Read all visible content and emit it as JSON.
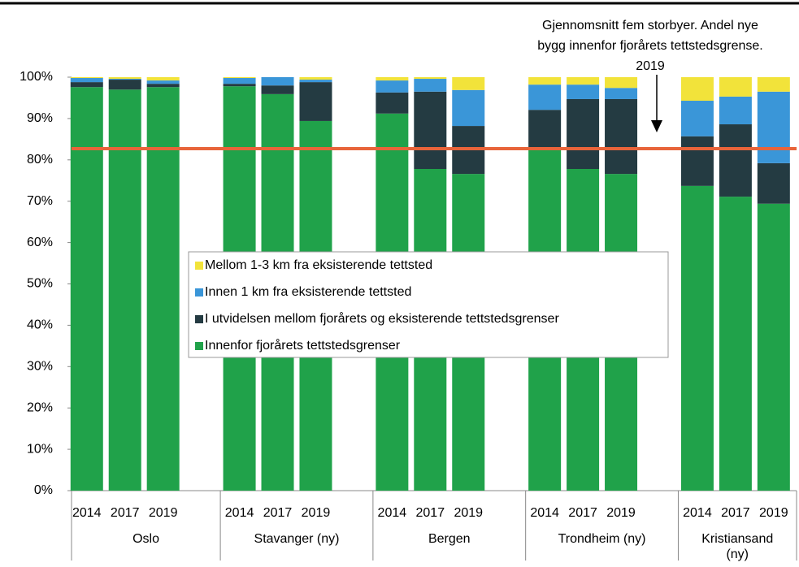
{
  "chart_data": {
    "type": "stacked_bar",
    "categories": [
      "2014",
      "2017",
      "2019",
      "2014",
      "2017",
      "2019",
      "2014",
      "2017",
      "2019",
      "2014",
      "2017",
      "2019",
      "2014",
      "2017",
      "2019"
    ],
    "groups": [
      "Oslo",
      "Stavanger (ny)",
      "Bergen",
      "Trondheim (ny)",
      "Kristiansand (ny)"
    ],
    "series": [
      {
        "name": "Innenfor fjorårets tettstedsgrenser",
        "color": "#20a24a",
        "values": [
          97.6,
          97.0,
          97.6,
          97.8,
          95.9,
          89.4,
          91.2,
          77.8,
          76.6,
          82.8,
          77.8,
          76.6,
          73.7,
          71.1,
          69.4
        ]
      },
      {
        "name": "I utvidelsen mellom fjorårets og eksisterende tettstedsgrenser",
        "color": "#243b42",
        "values": [
          1.2,
          2.4,
          0.8,
          0.6,
          2.1,
          9.4,
          5.1,
          18.7,
          11.6,
          9.3,
          16.9,
          18.1,
          12.0,
          17.5,
          9.8
        ]
      },
      {
        "name": "Innen 1 km fra eksisterende tettsted",
        "color": "#3a96d8",
        "values": [
          1.0,
          0.2,
          0.8,
          1.4,
          2.0,
          0.6,
          2.9,
          3.1,
          8.7,
          6.1,
          3.5,
          2.7,
          8.6,
          6.7,
          17.3
        ]
      },
      {
        "name": "Mellom 1-3 km fra eksisterende tettsted",
        "color": "#f2e33a",
        "values": [
          0.2,
          0.4,
          0.8,
          0.2,
          0.0,
          0.6,
          0.8,
          0.4,
          3.1,
          1.8,
          1.8,
          2.6,
          5.7,
          4.7,
          3.5
        ]
      }
    ],
    "reference_line": {
      "value": 82.7,
      "color": "#e8643a"
    },
    "annotation": [
      "Gjennomsnitt fem storbyer. Andel nye",
      "bygg innenfor fjorårets tettstedsgrense.",
      "2019"
    ],
    "ylim": [
      0,
      100
    ],
    "yticks": [
      {
        "value": 0,
        "label": "0%"
      },
      {
        "value": 10,
        "label": "10%"
      },
      {
        "value": 20,
        "label": "20%"
      },
      {
        "value": 30,
        "label": "30%"
      },
      {
        "value": 40,
        "label": "40%"
      },
      {
        "value": 50,
        "label": "50%"
      },
      {
        "value": 60,
        "label": "60%"
      },
      {
        "value": 70,
        "label": "70%"
      },
      {
        "value": 80,
        "label": "80%"
      },
      {
        "value": 90,
        "label": "90%"
      },
      {
        "value": 100,
        "label": "100%"
      }
    ]
  }
}
